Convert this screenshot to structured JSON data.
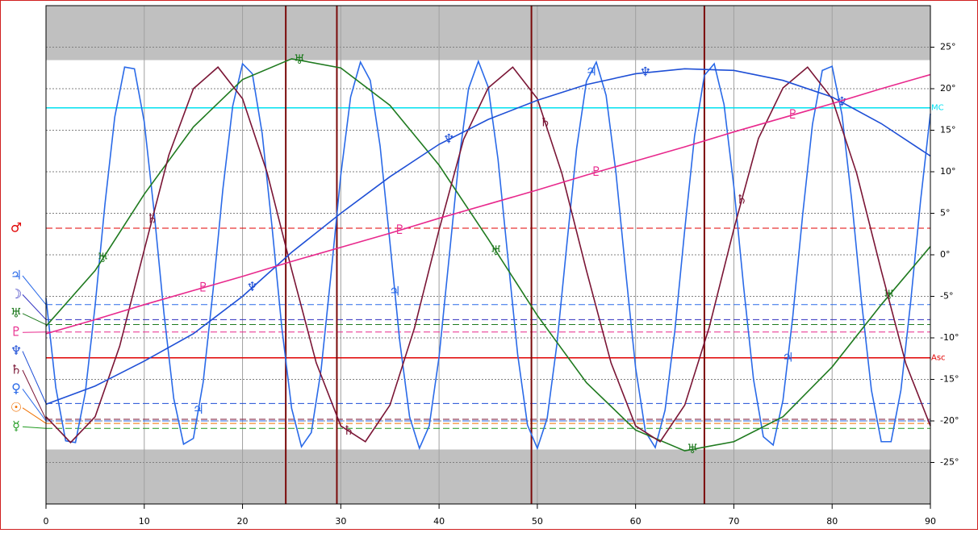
{
  "chart_data": {
    "type": "line",
    "xlim": [
      0,
      90
    ],
    "xticks": [
      0,
      10,
      20,
      30,
      40,
      50,
      60,
      70,
      80,
      90
    ],
    "ylim": [
      -30,
      30
    ],
    "yticks": [
      {
        "value": 25,
        "label": "25°"
      },
      {
        "value": 20,
        "label": "20°"
      },
      {
        "value": 15,
        "label": "15°"
      },
      {
        "value": 10,
        "label": "10°"
      },
      {
        "value": 5,
        "label": "5°"
      },
      {
        "value": 0,
        "label": "0°"
      },
      {
        "value": -5,
        "label": "-5°"
      },
      {
        "value": -10,
        "label": "-10°"
      },
      {
        "value": -15,
        "label": "-15°"
      },
      {
        "value": -20,
        "label": "-20°"
      },
      {
        "value": -25,
        "label": "-25°"
      }
    ],
    "grid": true,
    "shade_beyond": 23.44,
    "shade_color": "#c0c0c0",
    "series": [
      {
        "name": "♃",
        "color": "#2a6ae8",
        "x": [
          0,
          1,
          2,
          3,
          4,
          5,
          6,
          7,
          8,
          9,
          10,
          11,
          12,
          13,
          14,
          15,
          16,
          17,
          18,
          19,
          20,
          21,
          22,
          23,
          24,
          25,
          26,
          27,
          28,
          29,
          30,
          31,
          32,
          33,
          34,
          35,
          36,
          37,
          38,
          39,
          40,
          41,
          42,
          43,
          44,
          45,
          46,
          47,
          48,
          49,
          50,
          51,
          52,
          53,
          54,
          55,
          56,
          57,
          58,
          59,
          60,
          61,
          62,
          63,
          64,
          65,
          66,
          67,
          68,
          69,
          70,
          71,
          72,
          73,
          74,
          75,
          76,
          77,
          78,
          79,
          80,
          81,
          82,
          83,
          84,
          85,
          86,
          87,
          88,
          89,
          90
        ],
        "values": [
          -5.2,
          -16.0,
          -22.4,
          -22.6,
          -16.6,
          -6.1,
          6.1,
          16.6,
          22.6,
          22.4,
          16.0,
          5.2,
          -7.0,
          -17.3,
          -22.8,
          -22.1,
          -15.3,
          -4.3,
          7.9,
          17.9,
          23.0,
          21.8,
          14.6,
          3.4,
          -8.8,
          -18.5,
          -23.1,
          -21.4,
          -13.8,
          -2.4,
          9.6,
          19.0,
          23.2,
          21.0,
          13.1,
          1.5,
          -10.4,
          -19.5,
          -23.3,
          -20.6,
          -12.3,
          -0.6,
          11.2,
          20.0,
          23.3,
          20.2,
          11.5,
          -0.3,
          -12.0,
          -20.5,
          -23.3,
          -19.7,
          -10.7,
          1.2,
          12.8,
          20.9,
          23.2,
          19.2,
          9.9,
          -2.1,
          -13.6,
          -21.3,
          -23.2,
          -18.7,
          -9.1,
          3.0,
          14.3,
          21.6,
          23.0,
          18.1,
          8.2,
          -3.9,
          -15.0,
          -21.9,
          -22.9,
          -17.5,
          -7.4,
          4.8,
          15.7,
          22.2,
          22.7,
          16.9,
          6.5,
          -5.7,
          -16.3,
          -22.5,
          -22.5,
          -16.3,
          -5.6,
          6.5,
          17.0
        ]
      },
      {
        "name": "♅",
        "color": "#1f7a1f",
        "x": [
          0,
          5,
          10,
          15,
          20,
          25,
          30,
          35,
          40,
          45,
          50,
          55,
          60,
          65,
          70,
          75,
          80,
          85,
          90
        ],
        "values": [
          -8.6,
          -1.9,
          7.3,
          15.4,
          21.1,
          23.6,
          22.5,
          18.0,
          10.8,
          1.9,
          -7.3,
          -15.4,
          -21.1,
          -23.6,
          -22.5,
          -19.5,
          -13.5,
          -6.0,
          1.0
        ]
      },
      {
        "name": "♄",
        "color": "#7a1535",
        "x": [
          0,
          2.5,
          5,
          7.5,
          10,
          12.5,
          15,
          17.5,
          20,
          22.5,
          25,
          27.5,
          30,
          32.5,
          35,
          37.5,
          40,
          42.5,
          45,
          47.5,
          50,
          52.5,
          55,
          57.5,
          60,
          62.5,
          65,
          67.5,
          70,
          72.5,
          75,
          77.5,
          80,
          82.5,
          85,
          87.5,
          90
        ],
        "values": [
          -19.5,
          -22.6,
          -19.5,
          -11.0,
          0.6,
          12.0,
          20.0,
          22.6,
          18.8,
          9.9,
          -1.8,
          -13.0,
          -20.6,
          -22.5,
          -18.1,
          -8.8,
          3.0,
          13.9,
          20.1,
          22.6,
          18.8,
          9.8,
          -1.9,
          -13.0,
          -20.6,
          -22.5,
          -18.1,
          -8.7,
          3.1,
          14.0,
          20.1,
          22.6,
          18.8,
          9.8,
          -1.9,
          -13.1,
          -20.6
        ]
      },
      {
        "name": "♆",
        "color": "#1e4fd6",
        "x": [
          0,
          5,
          10,
          15,
          20,
          25,
          30,
          35,
          40,
          45,
          50,
          55,
          60,
          65,
          70,
          75,
          80,
          85,
          90
        ],
        "values": [
          -18.0,
          -15.8,
          -12.8,
          -9.5,
          -5.0,
          0.3,
          5.0,
          9.4,
          13.3,
          16.3,
          18.6,
          20.5,
          21.8,
          22.4,
          22.2,
          21.0,
          19.0,
          15.8,
          11.9
        ]
      },
      {
        "name": "♇",
        "color": "#e8288c",
        "x": [
          0,
          5,
          10,
          15,
          20,
          25,
          30,
          35,
          40,
          45,
          50,
          55,
          60,
          65,
          70,
          75,
          80,
          85,
          90
        ],
        "values": [
          -9.5,
          -7.8,
          -6.0,
          -4.3,
          -2.6,
          -0.8,
          0.9,
          2.6,
          4.4,
          6.1,
          7.8,
          9.6,
          11.3,
          13.0,
          14.8,
          16.5,
          18.2,
          20.0,
          21.7
        ]
      }
    ],
    "reference_lines": [
      {
        "label": "MC",
        "value": 17.7,
        "color": "#00e0f0"
      },
      {
        "label": "Asc",
        "value": -12.4,
        "color": "#e00000"
      }
    ],
    "natal_lines": [
      {
        "symbol": "♂",
        "value": 3.2,
        "color": "#e00000"
      },
      {
        "symbol": "♃",
        "value": -6.0,
        "color": "#2a6ae8"
      },
      {
        "symbol": "☽",
        "value": -7.8,
        "color": "#3030c0"
      },
      {
        "symbol": "♅",
        "value": -8.4,
        "color": "#1f7a1f"
      },
      {
        "symbol": "♇",
        "value": -9.3,
        "color": "#e8288c"
      },
      {
        "symbol": "♆",
        "value": -17.9,
        "color": "#1e4fd6"
      },
      {
        "symbol": "♄",
        "value": -19.8,
        "color": "#7a1535"
      },
      {
        "symbol": "♀",
        "value": -20.0,
        "color": "#2a6ae8"
      },
      {
        "symbol": "☉",
        "value": -20.3,
        "color": "#f07000"
      },
      {
        "symbol": "☿",
        "value": -20.9,
        "color": "#1f9a1f"
      }
    ],
    "vertical_lines": [
      {
        "value": 24.4,
        "color": "#7a0a0a"
      },
      {
        "value": 29.6,
        "color": "#7a0a0a"
      },
      {
        "value": 49.4,
        "color": "#7a0a0a"
      },
      {
        "value": 67.0,
        "color": "#7a0a0a"
      }
    ]
  }
}
